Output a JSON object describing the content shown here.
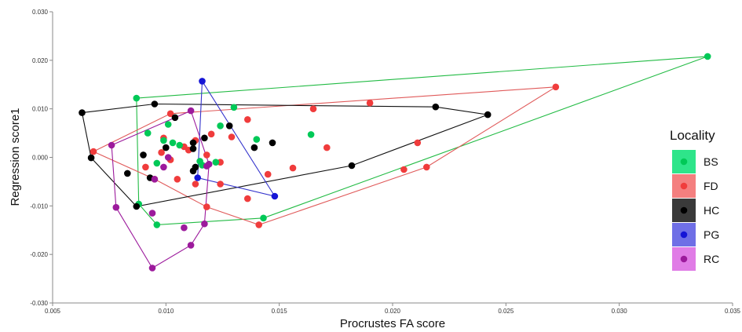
{
  "chart_data": {
    "type": "scatter",
    "title": "",
    "xlabel": "Procrustes FA score",
    "ylabel": "Regression score1",
    "xlim": [
      0.005,
      0.035
    ],
    "ylim": [
      -0.03,
      0.03
    ],
    "x_ticks": [
      "0.005",
      "0.010",
      "0.015",
      "0.020",
      "0.025",
      "0.030",
      "0.035"
    ],
    "y_ticks": [
      "-0.030",
      "-0.020",
      "-0.010",
      "0.000",
      "0.010",
      "0.020",
      "0.030"
    ],
    "grid": false,
    "legend": {
      "title": "Locality",
      "position": "right"
    },
    "series": [
      {
        "name": "BS",
        "color": "#00c957",
        "hull_color": "#22bb44",
        "swatch_color": "#2ee58a",
        "points": [
          {
            "x": 0.0087,
            "y": 0.0122
          },
          {
            "x": 0.0339,
            "y": 0.0208
          },
          {
            "x": 0.0143,
            "y": -0.0125
          },
          {
            "x": 0.0096,
            "y": -0.0139
          },
          {
            "x": 0.0088,
            "y": -0.0096
          },
          {
            "x": 0.013,
            "y": 0.0103
          },
          {
            "x": 0.0101,
            "y": 0.0068
          },
          {
            "x": 0.0092,
            "y": 0.005
          },
          {
            "x": 0.0099,
            "y": 0.0035
          },
          {
            "x": 0.0103,
            "y": 0.003
          },
          {
            "x": 0.0106,
            "y": 0.0025
          },
          {
            "x": 0.0096,
            "y": -0.0012
          },
          {
            "x": 0.0115,
            "y": -0.0008
          },
          {
            "x": 0.0122,
            "y": -0.001
          },
          {
            "x": 0.0124,
            "y": 0.0065
          },
          {
            "x": 0.014,
            "y": 0.0037
          },
          {
            "x": 0.0164,
            "y": 0.0047
          },
          {
            "x": 0.0116,
            "y": -0.0016
          }
        ],
        "hull": [
          {
            "x": 0.0087,
            "y": 0.0122
          },
          {
            "x": 0.0339,
            "y": 0.0208
          },
          {
            "x": 0.0143,
            "y": -0.0125
          },
          {
            "x": 0.0096,
            "y": -0.0139
          },
          {
            "x": 0.0088,
            "y": -0.0096
          },
          {
            "x": 0.0087,
            "y": 0.0122
          }
        ]
      },
      {
        "name": "FD",
        "color": "#f03c3c",
        "hull_color": "#e05a5a",
        "swatch_color": "#f47f7f",
        "points": [
          {
            "x": 0.0068,
            "y": 0.0012
          },
          {
            "x": 0.0272,
            "y": 0.0145
          },
          {
            "x": 0.0215,
            "y": -0.002
          },
          {
            "x": 0.0141,
            "y": -0.0139
          },
          {
            "x": 0.0118,
            "y": -0.0102
          },
          {
            "x": 0.0095,
            "y": -0.0045
          },
          {
            "x": 0.0102,
            "y": 0.009
          },
          {
            "x": 0.0165,
            "y": 0.01
          },
          {
            "x": 0.019,
            "y": 0.0112
          },
          {
            "x": 0.0136,
            "y": 0.0078
          },
          {
            "x": 0.0098,
            "y": 0.001
          },
          {
            "x": 0.0102,
            "y": -0.0005
          },
          {
            "x": 0.0108,
            "y": 0.0022
          },
          {
            "x": 0.0113,
            "y": 0.0035
          },
          {
            "x": 0.012,
            "y": 0.0048
          },
          {
            "x": 0.0129,
            "y": 0.0042
          },
          {
            "x": 0.0124,
            "y": -0.001
          },
          {
            "x": 0.0113,
            "y": -0.0055
          },
          {
            "x": 0.0136,
            "y": -0.0085
          },
          {
            "x": 0.0145,
            "y": -0.0035
          },
          {
            "x": 0.0156,
            "y": -0.0022
          },
          {
            "x": 0.0171,
            "y": 0.002
          },
          {
            "x": 0.0211,
            "y": 0.003
          },
          {
            "x": 0.0205,
            "y": -0.0025
          },
          {
            "x": 0.0091,
            "y": -0.002
          },
          {
            "x": 0.011,
            "y": 0.0015
          },
          {
            "x": 0.0105,
            "y": -0.0045
          },
          {
            "x": 0.0124,
            "y": -0.0055
          },
          {
            "x": 0.0099,
            "y": 0.004
          },
          {
            "x": 0.0118,
            "y": 0.0005
          }
        ],
        "hull": [
          {
            "x": 0.0068,
            "y": 0.0012
          },
          {
            "x": 0.0102,
            "y": 0.009
          },
          {
            "x": 0.0272,
            "y": 0.0145
          },
          {
            "x": 0.0215,
            "y": -0.002
          },
          {
            "x": 0.0141,
            "y": -0.0139
          },
          {
            "x": 0.0118,
            "y": -0.0102
          },
          {
            "x": 0.0095,
            "y": -0.0045
          },
          {
            "x": 0.0068,
            "y": 0.0012
          }
        ]
      },
      {
        "name": "HC",
        "color": "#000000",
        "hull_color": "#111111",
        "swatch_color": "#3a3a3a",
        "points": [
          {
            "x": 0.0063,
            "y": 0.0092
          },
          {
            "x": 0.0095,
            "y": 0.011
          },
          {
            "x": 0.0219,
            "y": 0.0104
          },
          {
            "x": 0.0242,
            "y": 0.0088
          },
          {
            "x": 0.0182,
            "y": -0.0017
          },
          {
            "x": 0.0087,
            "y": -0.0101
          },
          {
            "x": 0.0067,
            "y": -0.0001
          },
          {
            "x": 0.0104,
            "y": 0.0082
          },
          {
            "x": 0.009,
            "y": 0.0005
          },
          {
            "x": 0.0083,
            "y": -0.0033
          },
          {
            "x": 0.0093,
            "y": -0.0042
          },
          {
            "x": 0.01,
            "y": 0.002
          },
          {
            "x": 0.0112,
            "y": 0.0018
          },
          {
            "x": 0.0112,
            "y": -0.0028
          },
          {
            "x": 0.0117,
            "y": 0.004
          },
          {
            "x": 0.0128,
            "y": 0.0065
          },
          {
            "x": 0.0147,
            "y": 0.003
          },
          {
            "x": 0.0139,
            "y": 0.002
          },
          {
            "x": 0.0113,
            "y": -0.002
          },
          {
            "x": 0.0112,
            "y": 0.003
          }
        ],
        "hull": [
          {
            "x": 0.0063,
            "y": 0.0092
          },
          {
            "x": 0.0095,
            "y": 0.011
          },
          {
            "x": 0.0219,
            "y": 0.0104
          },
          {
            "x": 0.0242,
            "y": 0.0088
          },
          {
            "x": 0.0182,
            "y": -0.0017
          },
          {
            "x": 0.0087,
            "y": -0.0101
          },
          {
            "x": 0.0067,
            "y": -0.0001
          },
          {
            "x": 0.0063,
            "y": 0.0092
          }
        ]
      },
      {
        "name": "PG",
        "color": "#1515d6",
        "hull_color": "#3333cc",
        "swatch_color": "#6f6fe6",
        "points": [
          {
            "x": 0.0116,
            "y": 0.0157
          },
          {
            "x": 0.0148,
            "y": -0.008
          },
          {
            "x": 0.0114,
            "y": -0.0042
          }
        ],
        "hull": [
          {
            "x": 0.0116,
            "y": 0.0157
          },
          {
            "x": 0.0148,
            "y": -0.008
          },
          {
            "x": 0.0114,
            "y": -0.0042
          },
          {
            "x": 0.0116,
            "y": 0.0157
          }
        ]
      },
      {
        "name": "RC",
        "color": "#9c1a9c",
        "hull_color": "#9c1a9c",
        "swatch_color": "#e07ce6",
        "points": [
          {
            "x": 0.0076,
            "y": 0.0025
          },
          {
            "x": 0.0111,
            "y": 0.0096
          },
          {
            "x": 0.0119,
            "y": -0.0014
          },
          {
            "x": 0.0117,
            "y": -0.0137
          },
          {
            "x": 0.0111,
            "y": -0.0181
          },
          {
            "x": 0.0094,
            "y": -0.0228
          },
          {
            "x": 0.0078,
            "y": -0.0103
          },
          {
            "x": 0.0094,
            "y": -0.0115
          },
          {
            "x": 0.0108,
            "y": -0.0145
          },
          {
            "x": 0.0099,
            "y": -0.002
          },
          {
            "x": 0.0101,
            "y": 0.0
          },
          {
            "x": 0.0095,
            "y": -0.0045
          },
          {
            "x": 0.0118,
            "y": -0.0018
          }
        ],
        "hull": [
          {
            "x": 0.0076,
            "y": 0.0025
          },
          {
            "x": 0.0111,
            "y": 0.0096
          },
          {
            "x": 0.0119,
            "y": -0.0014
          },
          {
            "x": 0.0117,
            "y": -0.0137
          },
          {
            "x": 0.0111,
            "y": -0.0181
          },
          {
            "x": 0.0094,
            "y": -0.0228
          },
          {
            "x": 0.0078,
            "y": -0.0103
          },
          {
            "x": 0.0076,
            "y": 0.0025
          }
        ]
      }
    ]
  }
}
